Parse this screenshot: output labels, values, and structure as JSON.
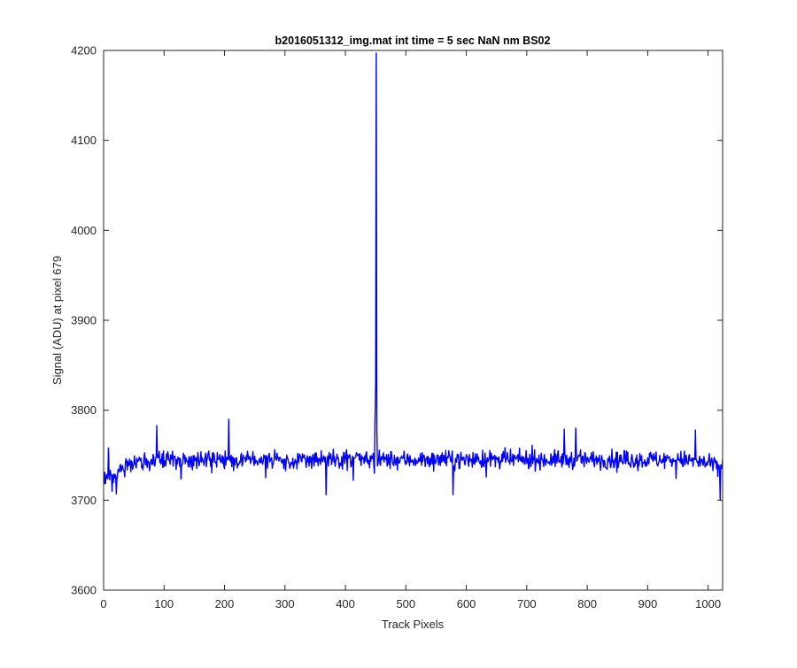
{
  "chart_data": {
    "type": "line",
    "title": "b2016051312_img.mat int time = 5 sec  NaN nm BS02",
    "xlabel": "Track Pixels",
    "ylabel": "Signal (ADU) at pixel 679",
    "xlim": [
      0,
      1024
    ],
    "ylim": [
      3600,
      4200
    ],
    "xticks": [
      "0",
      "100",
      "200",
      "300",
      "400",
      "500",
      "600",
      "700",
      "800",
      "900",
      "1000"
    ],
    "yticks": [
      "3600",
      "3700",
      "3800",
      "3900",
      "4000",
      "4100",
      "4200"
    ],
    "grid": false,
    "legend": "none",
    "series": [
      {
        "color": "#0000ff",
        "baseline_start": 3722,
        "baseline_mid": 3745,
        "baseline_end": 3738,
        "noise_amplitude": 9,
        "x_range": [
          1,
          1024
        ],
        "spike": {
          "x": 451,
          "y": 4197
        },
        "notable_points": [
          {
            "x": 1,
            "y": 3718
          },
          {
            "x": 4,
            "y": 3724
          },
          {
            "x": 8,
            "y": 3758
          },
          {
            "x": 14,
            "y": 3710
          },
          {
            "x": 21,
            "y": 3707
          },
          {
            "x": 88,
            "y": 3783
          },
          {
            "x": 207,
            "y": 3790
          },
          {
            "x": 268,
            "y": 3725
          },
          {
            "x": 368,
            "y": 3706
          },
          {
            "x": 413,
            "y": 3722
          },
          {
            "x": 448,
            "y": 3730
          },
          {
            "x": 449,
            "y": 3790
          },
          {
            "x": 450,
            "y": 3830
          },
          {
            "x": 451,
            "y": 4197
          },
          {
            "x": 452,
            "y": 3780
          },
          {
            "x": 453,
            "y": 3738
          },
          {
            "x": 578,
            "y": 3706
          },
          {
            "x": 762,
            "y": 3779
          },
          {
            "x": 781,
            "y": 3780
          },
          {
            "x": 979,
            "y": 3778
          },
          {
            "x": 1020,
            "y": 3700
          },
          {
            "x": 1024,
            "y": 3745
          }
        ]
      }
    ]
  }
}
